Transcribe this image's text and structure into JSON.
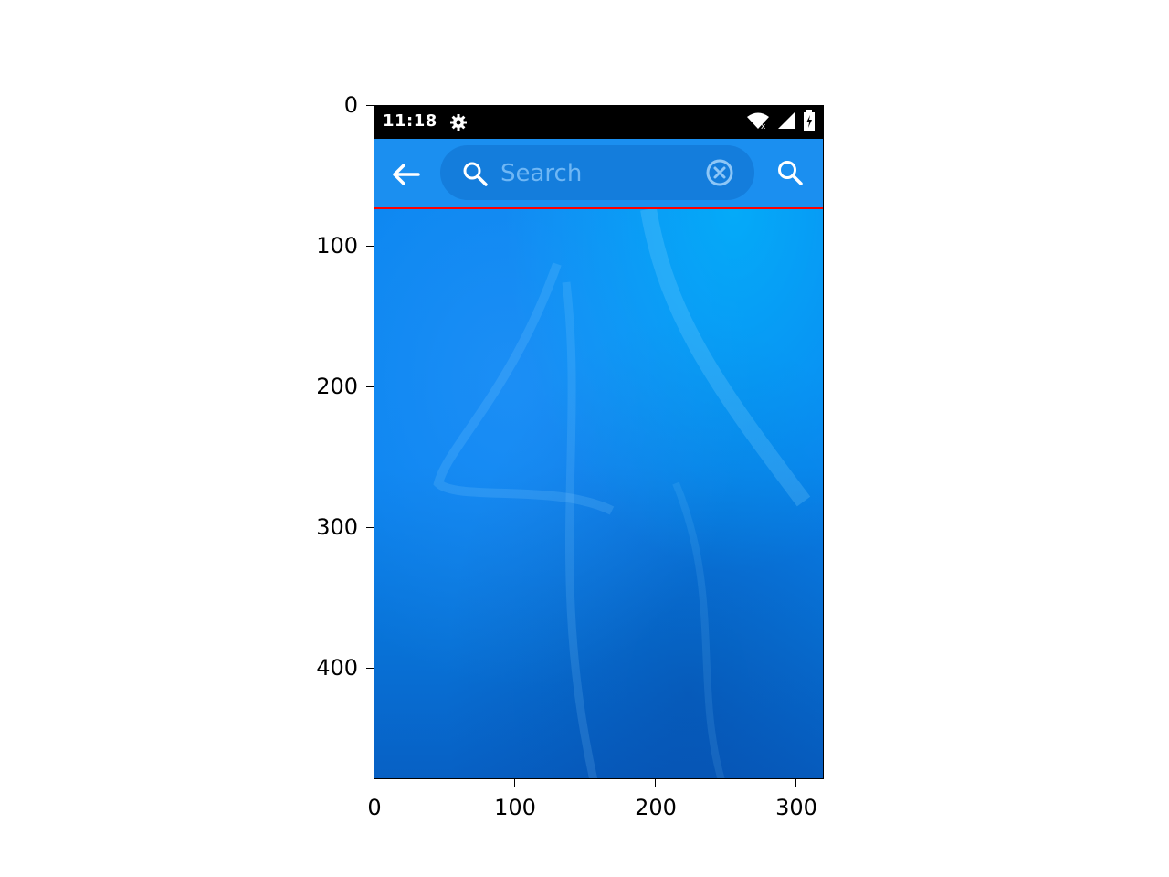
{
  "status_bar": {
    "time": "11:18",
    "icons": [
      "gear-icon",
      "wifi-icon",
      "signal-icon",
      "battery-icon"
    ]
  },
  "toolbar": {
    "back_icon": "arrow-left-icon",
    "search": {
      "placeholder": "Search",
      "value": ""
    },
    "clear_icon": "close-circle-icon",
    "search_icon": "search-icon"
  },
  "axes": {
    "y_ticks": [
      "0",
      "100",
      "200",
      "300",
      "400"
    ],
    "x_ticks": [
      "0",
      "100",
      "200",
      "300"
    ]
  },
  "colors": {
    "toolbar": "#1b8ff0",
    "statusbar": "#000000",
    "highlight_line": "#ff0000",
    "wallpaper": "#0a86f0"
  }
}
